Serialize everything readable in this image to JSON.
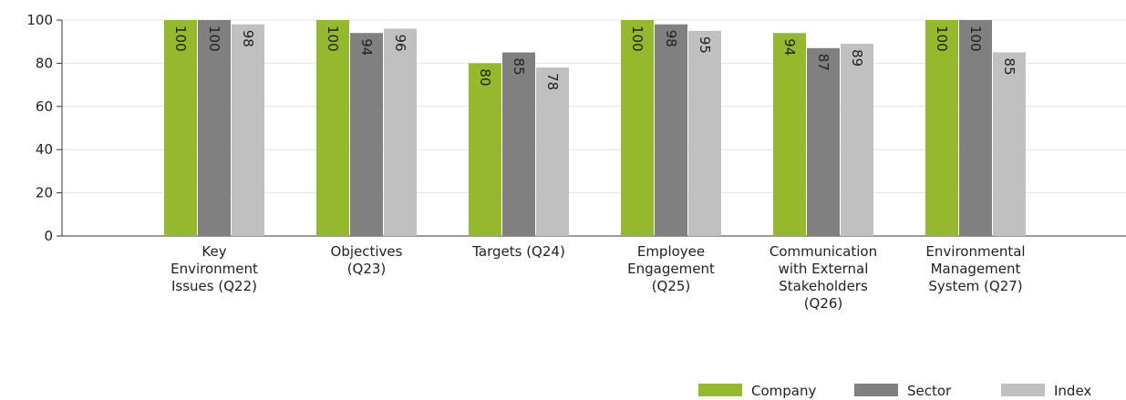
{
  "chart_data": {
    "type": "bar",
    "categories": [
      "Key Environment Issues (Q22)",
      "Objectives (Q23)",
      "Targets (Q24)",
      "Employee Engagement (Q25)",
      "Communication with External Stakeholders (Q26)",
      "Environmental Management System (Q27)"
    ],
    "series": [
      {
        "name": "Company",
        "color": "#95b82e",
        "values": [
          100,
          100,
          80,
          100,
          94,
          100
        ]
      },
      {
        "name": "Sector",
        "color": "#808080",
        "values": [
          100,
          94,
          85,
          98,
          87,
          100
        ]
      },
      {
        "name": "Index",
        "color": "#c0c0c0",
        "values": [
          98,
          96,
          78,
          95,
          89,
          85
        ]
      }
    ],
    "ylim": [
      0,
      100
    ],
    "yticks": [
      0,
      20,
      40,
      60,
      80,
      100
    ],
    "grid": true,
    "legend": "bottom-right"
  }
}
